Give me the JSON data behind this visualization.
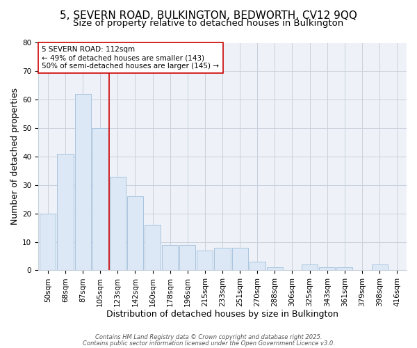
{
  "title_line1": "5, SEVERN ROAD, BULKINGTON, BEDWORTH, CV12 9QQ",
  "title_line2": "Size of property relative to detached houses in Bulkington",
  "xlabel": "Distribution of detached houses by size in Bulkington",
  "ylabel": "Number of detached properties",
  "categories": [
    "50sqm",
    "68sqm",
    "87sqm",
    "105sqm",
    "123sqm",
    "142sqm",
    "160sqm",
    "178sqm",
    "196sqm",
    "215sqm",
    "233sqm",
    "251sqm",
    "270sqm",
    "288sqm",
    "306sqm",
    "325sqm",
    "343sqm",
    "361sqm",
    "379sqm",
    "398sqm",
    "416sqm"
  ],
  "values": [
    20,
    41,
    62,
    50,
    33,
    26,
    16,
    9,
    9,
    7,
    8,
    8,
    3,
    1,
    0,
    2,
    1,
    1,
    0,
    2,
    0
  ],
  "bar_color": "#dce8f5",
  "bar_edge_color": "#aac4de",
  "bar_edge_width": 0.7,
  "vline_x": 3.5,
  "vline_color": "#cc0000",
  "vline_linewidth": 1.2,
  "annotation_text": "5 SEVERN ROAD: 112sqm\n← 49% of detached houses are smaller (143)\n50% of semi-detached houses are larger (145) →",
  "annotation_box_color": "#ffffff",
  "annotation_box_edge_color": "#cc0000",
  "annotation_fontsize": 7.5,
  "grid_color": "#c8d0dc",
  "background_color": "#ffffff",
  "plot_bg_color": "#eef2f8",
  "ylim": [
    0,
    80
  ],
  "yticks": [
    0,
    10,
    20,
    30,
    40,
    50,
    60,
    70,
    80
  ],
  "footer_line1": "Contains HM Land Registry data © Crown copyright and database right 2025.",
  "footer_line2": "Contains public sector information licensed under the Open Government Licence v3.0.",
  "title_fontsize": 11,
  "subtitle_fontsize": 9.5,
  "axis_label_fontsize": 9,
  "tick_fontsize": 7.5
}
